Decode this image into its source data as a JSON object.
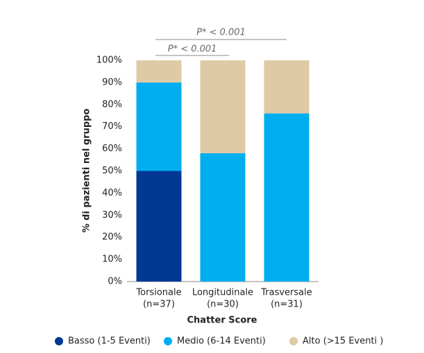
{
  "chart_data": {
    "type": "stacked_bar",
    "x_label": "Chatter Score",
    "y_label": "% di pazienti nel gruppo",
    "categories": [
      [
        "Torsionale",
        "(n=37)"
      ],
      [
        "Longitudinale",
        "(n=30)"
      ],
      [
        "Trasversale",
        "(n=31)"
      ]
    ],
    "series": [
      {
        "name": "Basso (1-5 Eventi)",
        "color": "#003893",
        "values": [
          50,
          0,
          0
        ]
      },
      {
        "name": "Medio (6-14 Eventi)",
        "color": "#00aeef",
        "values": [
          40,
          58,
          76
        ]
      },
      {
        "name": "Alto (>15 Eventi )",
        "color": "#dfcaa5",
        "values": [
          10,
          42,
          24
        ]
      }
    ],
    "ylim": [
      0,
      100
    ],
    "yticks": [
      {
        "value": 0,
        "label": "0%"
      },
      {
        "value": 10,
        "label": "10%"
      },
      {
        "value": 20,
        "label": "20%"
      },
      {
        "value": 30,
        "label": "30%"
      },
      {
        "value": 40,
        "label": "40%"
      },
      {
        "value": 50,
        "label": "50%"
      },
      {
        "value": 60,
        "label": "60%"
      },
      {
        "value": 70,
        "label": "70%"
      },
      {
        "value": 80,
        "label": "80%"
      },
      {
        "value": 90,
        "label": "90%"
      },
      {
        "value": 100,
        "label": "100%"
      }
    ],
    "annotations": [
      "P* < 0.001",
      "P* < 0.001"
    ],
    "legend": "bottom"
  }
}
